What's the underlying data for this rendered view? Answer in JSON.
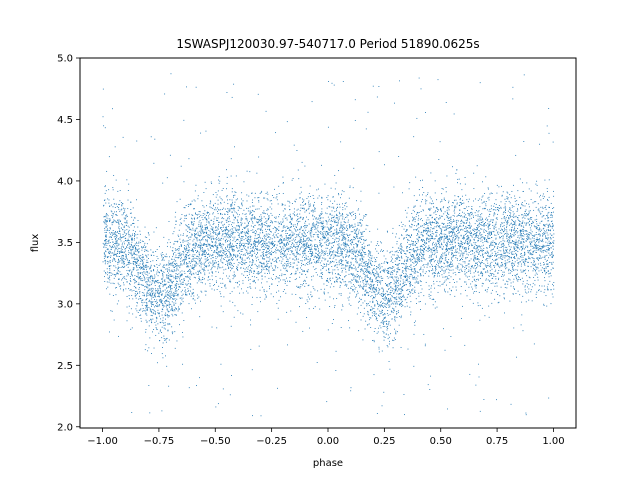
{
  "chart_data": {
    "type": "scatter",
    "title": "1SWASPJ120030.97-540717.0 Period 51890.0625s",
    "xlabel": "phase",
    "ylabel": "flux",
    "xlim": [
      -1.1,
      1.1
    ],
    "ylim": [
      1.99,
      5.0
    ],
    "x_ticks": [
      -1.0,
      -0.75,
      -0.5,
      -0.25,
      0.0,
      0.25,
      0.5,
      0.75,
      1.0
    ],
    "x_tick_labels": [
      "−1.00",
      "−0.75",
      "−0.50",
      "−0.25",
      "0.00",
      "0.25",
      "0.50",
      "0.75",
      "1.00"
    ],
    "y_ticks": [
      2.0,
      2.5,
      3.0,
      3.5,
      4.0,
      4.5,
      5.0
    ],
    "y_tick_labels": [
      "2.0",
      "2.5",
      "3.0",
      "3.5",
      "4.0",
      "4.5",
      "5.0"
    ],
    "grid": false,
    "legend": "none",
    "point_color": "#1f77b4",
    "baseline_flux": 3.5,
    "scatter_std": 0.2,
    "eclipse_centers_phase": [
      -0.75,
      0.25
    ],
    "eclipse_min_flux": 3.05,
    "eclipse_half_width_phase": 0.07,
    "x_range": [
      -1.0,
      1.0
    ]
  }
}
